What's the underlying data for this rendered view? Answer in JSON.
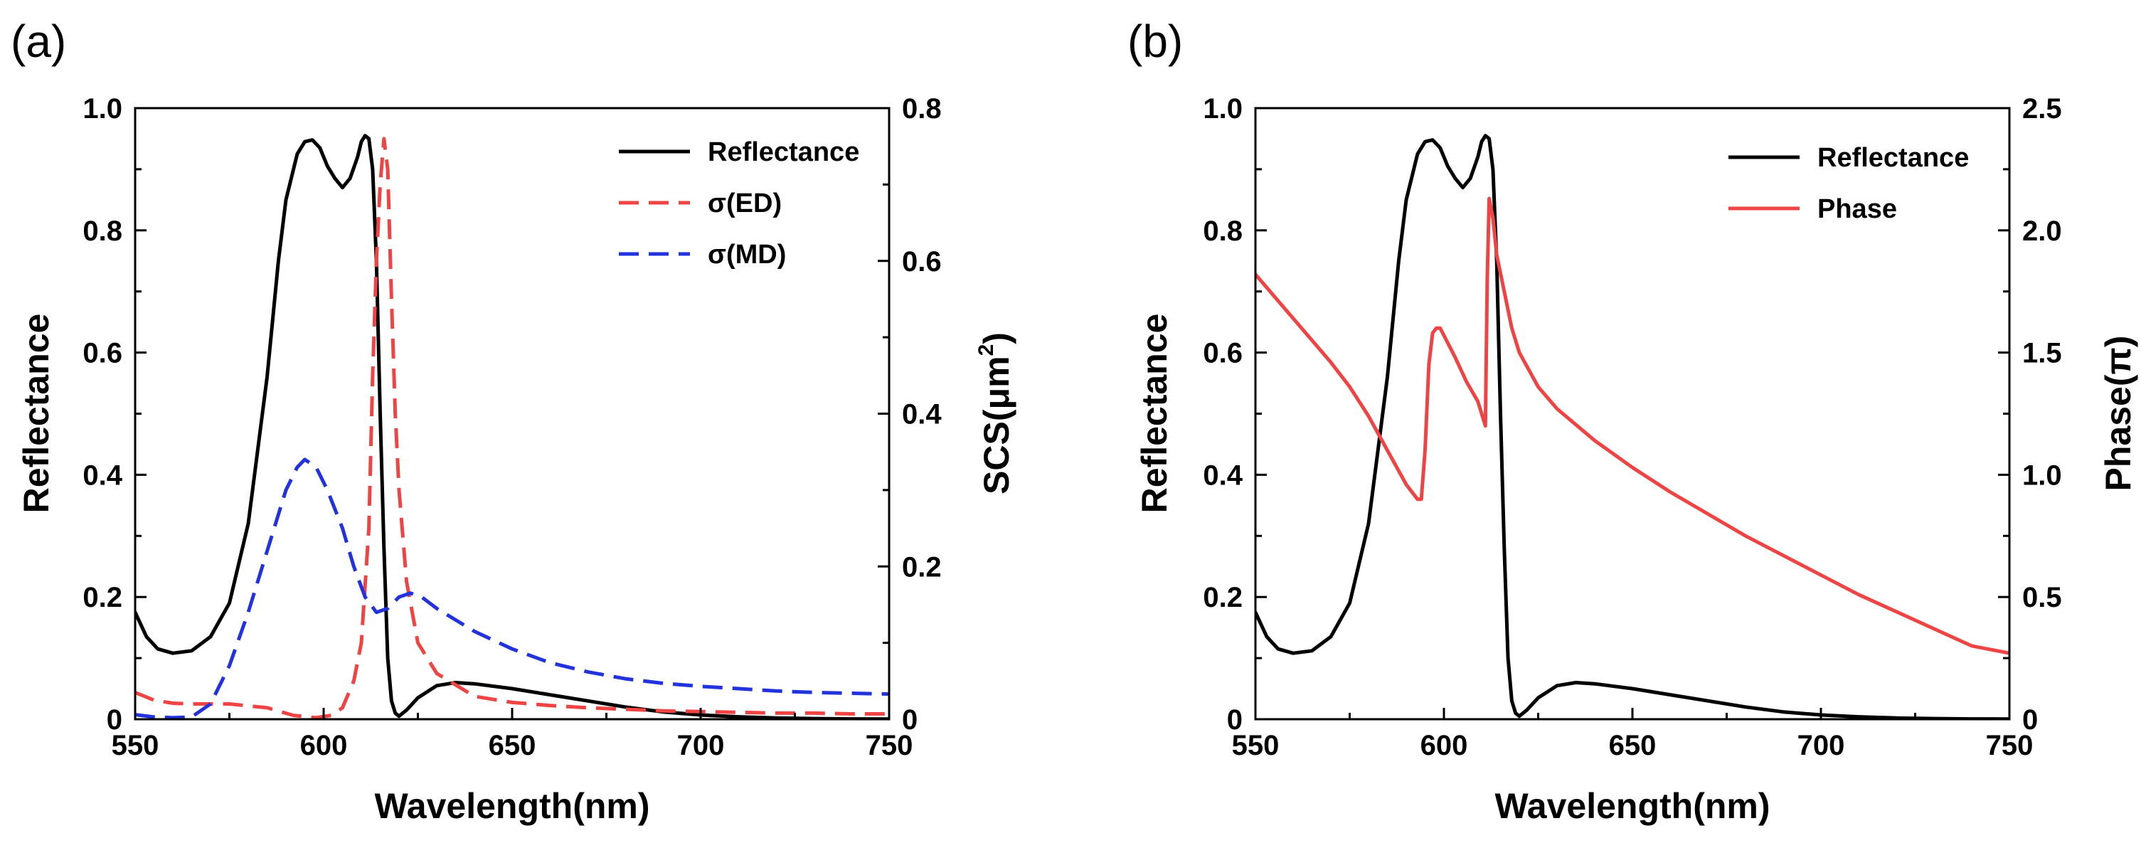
{
  "figure": {
    "panels": [
      {
        "label": "(a)",
        "xlabel": "Wavelength(nm)",
        "ylabel_left": "Reflectance",
        "ylabel_right_base": "SCS(μm",
        "ylabel_right_sup": "2",
        "ylabel_right_end": ")",
        "legend": [
          "Reflectance",
          "σ(ED)",
          "σ(MD)"
        ]
      },
      {
        "label": "(b)",
        "xlabel": "Wavelength(nm)",
        "ylabel_left": "Reflectance",
        "ylabel_right": "Phase(π)",
        "legend": [
          "Reflectance",
          "Phase"
        ]
      }
    ]
  },
  "chart_data": [
    {
      "type": "line",
      "panel": "(a)",
      "xlabel": "Wavelength(nm)",
      "ylabel": "Reflectance",
      "ylabel_right": "SCS(μm2)",
      "xlim": [
        550,
        750
      ],
      "ylim": [
        0,
        1.0
      ],
      "ylim_right": [
        0,
        0.8
      ],
      "xticks": [
        550,
        600,
        650,
        700,
        750
      ],
      "xtick_labels": [
        "550",
        "600",
        "650",
        "700",
        "750"
      ],
      "yticks": [
        0,
        0.2,
        0.4,
        0.6,
        0.8,
        1.0
      ],
      "ytick_labels": [
        "0",
        "0.2",
        "0.4",
        "0.6",
        "0.8",
        "1.0"
      ],
      "yticks_right": [
        0,
        0.2,
        0.4,
        0.6,
        0.8
      ],
      "ytick_labels_right": [
        "0",
        "0.2",
        "0.4",
        "0.6",
        "0.8"
      ],
      "legend_position": "top-right",
      "grid": false,
      "series": [
        {
          "name": "Reflectance",
          "axis": "left",
          "color": "#000000",
          "dash": "solid",
          "points": [
            [
              550,
              0.175
            ],
            [
              553,
              0.135
            ],
            [
              556,
              0.115
            ],
            [
              560,
              0.108
            ],
            [
              565,
              0.112
            ],
            [
              570,
              0.135
            ],
            [
              575,
              0.19
            ],
            [
              580,
              0.32
            ],
            [
              585,
              0.56
            ],
            [
              588,
              0.75
            ],
            [
              590,
              0.85
            ],
            [
              593,
              0.925
            ],
            [
              595,
              0.945
            ],
            [
              597,
              0.948
            ],
            [
              599,
              0.935
            ],
            [
              601,
              0.905
            ],
            [
              603,
              0.885
            ],
            [
              605,
              0.87
            ],
            [
              607,
              0.885
            ],
            [
              609,
              0.92
            ],
            [
              610,
              0.945
            ],
            [
              611,
              0.955
            ],
            [
              612,
              0.95
            ],
            [
              613,
              0.9
            ],
            [
              614,
              0.75
            ],
            [
              615,
              0.5
            ],
            [
              616,
              0.28
            ],
            [
              617,
              0.1
            ],
            [
              618,
              0.03
            ],
            [
              619,
              0.01
            ],
            [
              620,
              0.005
            ],
            [
              622,
              0.015
            ],
            [
              625,
              0.035
            ],
            [
              630,
              0.055
            ],
            [
              635,
              0.06
            ],
            [
              640,
              0.058
            ],
            [
              650,
              0.05
            ],
            [
              660,
              0.04
            ],
            [
              670,
              0.03
            ],
            [
              680,
              0.02
            ],
            [
              690,
              0.012
            ],
            [
              700,
              0.007
            ],
            [
              710,
              0.004
            ],
            [
              720,
              0.002
            ],
            [
              730,
              0.001
            ],
            [
              740,
              0.0005
            ],
            [
              750,
              0.0003
            ]
          ]
        },
        {
          "name": "σ(ED)",
          "axis": "right",
          "color": "#EE4444",
          "dash": "dashed",
          "points": [
            [
              550,
              0.035
            ],
            [
              555,
              0.025
            ],
            [
              560,
              0.021
            ],
            [
              565,
              0.02
            ],
            [
              575,
              0.02
            ],
            [
              585,
              0.015
            ],
            [
              592,
              0.005
            ],
            [
              598,
              0.002
            ],
            [
              602,
              0.005
            ],
            [
              605,
              0.015
            ],
            [
              608,
              0.05
            ],
            [
              610,
              0.1
            ],
            [
              612,
              0.25
            ],
            [
              613,
              0.45
            ],
            [
              614,
              0.6
            ],
            [
              615,
              0.7
            ],
            [
              616,
              0.76
            ],
            [
              617,
              0.72
            ],
            [
              618,
              0.55
            ],
            [
              619,
              0.4
            ],
            [
              620,
              0.3
            ],
            [
              622,
              0.18
            ],
            [
              625,
              0.1
            ],
            [
              630,
              0.06
            ],
            [
              640,
              0.03
            ],
            [
              650,
              0.022
            ],
            [
              660,
              0.018
            ],
            [
              670,
              0.015
            ],
            [
              680,
              0.013
            ],
            [
              690,
              0.011
            ],
            [
              700,
              0.01
            ],
            [
              710,
              0.009
            ],
            [
              720,
              0.008
            ],
            [
              730,
              0.008
            ],
            [
              740,
              0.007
            ],
            [
              750,
              0.007
            ]
          ]
        },
        {
          "name": "σ(MD)",
          "axis": "right",
          "color": "#2233DD",
          "dash": "dashed",
          "points": [
            [
              550,
              0.006
            ],
            [
              555,
              0.003
            ],
            [
              560,
              0.002
            ],
            [
              565,
              0.003
            ],
            [
              570,
              0.02
            ],
            [
              575,
              0.07
            ],
            [
              580,
              0.14
            ],
            [
              585,
              0.22
            ],
            [
              590,
              0.3
            ],
            [
              593,
              0.33
            ],
            [
              595,
              0.34
            ],
            [
              598,
              0.33
            ],
            [
              601,
              0.3
            ],
            [
              605,
              0.25
            ],
            [
              608,
              0.2
            ],
            [
              611,
              0.16
            ],
            [
              614,
              0.14
            ],
            [
              617,
              0.145
            ],
            [
              620,
              0.16
            ],
            [
              623,
              0.165
            ],
            [
              626,
              0.16
            ],
            [
              630,
              0.145
            ],
            [
              635,
              0.13
            ],
            [
              640,
              0.115
            ],
            [
              650,
              0.092
            ],
            [
              660,
              0.074
            ],
            [
              670,
              0.062
            ],
            [
              680,
              0.053
            ],
            [
              690,
              0.047
            ],
            [
              700,
              0.043
            ],
            [
              710,
              0.04
            ],
            [
              720,
              0.037
            ],
            [
              730,
              0.035
            ],
            [
              740,
              0.034
            ],
            [
              750,
              0.033
            ]
          ]
        }
      ]
    },
    {
      "type": "line",
      "panel": "(b)",
      "xlabel": "Wavelength(nm)",
      "ylabel": "Reflectance",
      "ylabel_right": "Phase(π)",
      "xlim": [
        550,
        750
      ],
      "ylim": [
        0,
        1.0
      ],
      "ylim_right": [
        0,
        2.5
      ],
      "xticks": [
        550,
        600,
        650,
        700,
        750
      ],
      "xtick_labels": [
        "550",
        "600",
        "650",
        "700",
        "750"
      ],
      "yticks": [
        0,
        0.2,
        0.4,
        0.6,
        0.8,
        1.0
      ],
      "ytick_labels": [
        "0",
        "0.2",
        "0.4",
        "0.6",
        "0.8",
        "1.0"
      ],
      "yticks_right": [
        0,
        0.5,
        1.0,
        1.5,
        2.0,
        2.5
      ],
      "ytick_labels_right": [
        "0",
        "0.5",
        "1.0",
        "1.5",
        "2.0",
        "2.5"
      ],
      "legend_position": "top-right",
      "grid": false,
      "series": [
        {
          "name": "Reflectance",
          "axis": "left",
          "color": "#000000",
          "dash": "solid",
          "points": [
            [
              550,
              0.175
            ],
            [
              553,
              0.135
            ],
            [
              556,
              0.115
            ],
            [
              560,
              0.108
            ],
            [
              565,
              0.112
            ],
            [
              570,
              0.135
            ],
            [
              575,
              0.19
            ],
            [
              580,
              0.32
            ],
            [
              585,
              0.56
            ],
            [
              588,
              0.75
            ],
            [
              590,
              0.85
            ],
            [
              593,
              0.925
            ],
            [
              595,
              0.945
            ],
            [
              597,
              0.948
            ],
            [
              599,
              0.935
            ],
            [
              601,
              0.905
            ],
            [
              603,
              0.885
            ],
            [
              605,
              0.87
            ],
            [
              607,
              0.885
            ],
            [
              609,
              0.92
            ],
            [
              610,
              0.945
            ],
            [
              611,
              0.955
            ],
            [
              612,
              0.95
            ],
            [
              613,
              0.9
            ],
            [
              614,
              0.75
            ],
            [
              615,
              0.5
            ],
            [
              616,
              0.28
            ],
            [
              617,
              0.1
            ],
            [
              618,
              0.03
            ],
            [
              619,
              0.01
            ],
            [
              620,
              0.005
            ],
            [
              622,
              0.015
            ],
            [
              625,
              0.035
            ],
            [
              630,
              0.055
            ],
            [
              635,
              0.06
            ],
            [
              640,
              0.058
            ],
            [
              650,
              0.05
            ],
            [
              660,
              0.04
            ],
            [
              670,
              0.03
            ],
            [
              680,
              0.02
            ],
            [
              690,
              0.012
            ],
            [
              700,
              0.007
            ],
            [
              710,
              0.004
            ],
            [
              720,
              0.002
            ],
            [
              730,
              0.001
            ],
            [
              740,
              0.0005
            ],
            [
              750,
              0.0003
            ]
          ]
        },
        {
          "name": "Phase",
          "axis": "right",
          "color": "#EE4444",
          "dash": "solid",
          "points": [
            [
              550,
              1.82
            ],
            [
              555,
              1.73
            ],
            [
              560,
              1.64
            ],
            [
              565,
              1.55
            ],
            [
              570,
              1.46
            ],
            [
              575,
              1.36
            ],
            [
              580,
              1.24
            ],
            [
              585,
              1.1
            ],
            [
              590,
              0.96
            ],
            [
              593,
              0.9
            ],
            [
              594,
              0.9
            ],
            [
              595,
              1.1
            ],
            [
              596,
              1.45
            ],
            [
              597,
              1.58
            ],
            [
              598,
              1.6
            ],
            [
              599,
              1.6
            ],
            [
              600,
              1.57
            ],
            [
              603,
              1.48
            ],
            [
              606,
              1.38
            ],
            [
              609,
              1.3
            ],
            [
              611,
              1.2
            ],
            [
              611.5,
              1.8
            ],
            [
              612,
              2.13
            ],
            [
              613,
              2.05
            ],
            [
              614,
              1.9
            ],
            [
              616,
              1.75
            ],
            [
              618,
              1.6
            ],
            [
              620,
              1.5
            ],
            [
              625,
              1.36
            ],
            [
              630,
              1.27
            ],
            [
              640,
              1.14
            ],
            [
              650,
              1.03
            ],
            [
              660,
              0.93
            ],
            [
              670,
              0.84
            ],
            [
              680,
              0.75
            ],
            [
              690,
              0.67
            ],
            [
              700,
              0.59
            ],
            [
              710,
              0.51
            ],
            [
              720,
              0.44
            ],
            [
              730,
              0.37
            ],
            [
              740,
              0.3
            ],
            [
              750,
              0.27
            ]
          ]
        }
      ]
    }
  ]
}
